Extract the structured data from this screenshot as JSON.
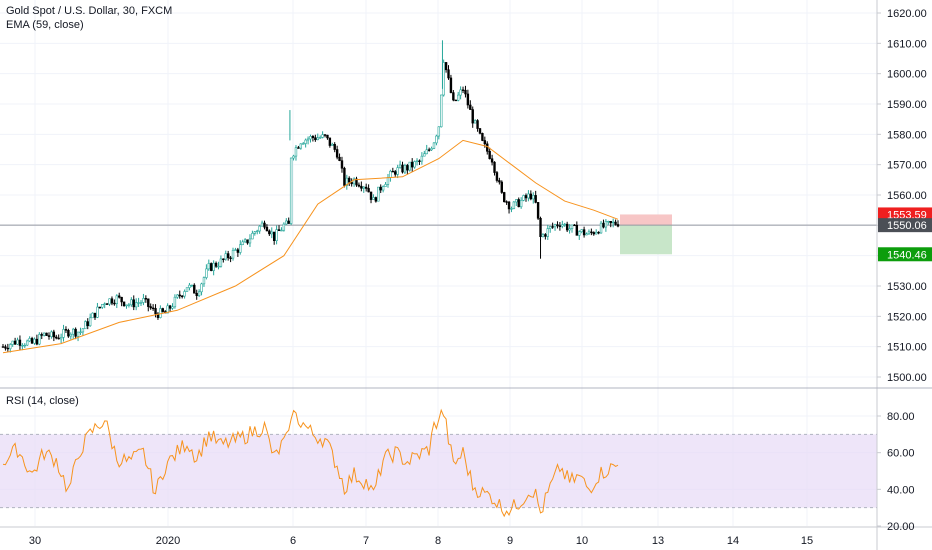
{
  "header": {
    "title": "Gold Spot / U.S. Dollar, 30, FXCM",
    "ema_label": "EMA (59, close)"
  },
  "rsi_panel": {
    "label": "RSI (14, close)"
  },
  "colors": {
    "up": "#26a69a",
    "down": "#000000",
    "ema": "#f7931e",
    "rsi": "#f7931e",
    "rsi_band": "#e8dcf7",
    "stop_zone": "#f7c6c6",
    "target_zone": "#c8e6c9",
    "stop_tag": "#ef1f1f",
    "target_tag": "#0c9d0c",
    "current_tag": "#4b4f56"
  },
  "chart_data": [
    {
      "type": "candlestick",
      "title": "Gold Spot / U.S. Dollar, 30, FXCM",
      "ylim": [
        1495,
        1625
      ],
      "y_ticks": [
        "1620.00",
        "1610.00",
        "1600.00",
        "1590.00",
        "1580.00",
        "1570.00",
        "1560.00",
        "1550.00",
        "1540.00",
        "1530.00",
        "1520.00",
        "1510.00",
        "1500.00"
      ],
      "x_ticks": [
        "30",
        "2020",
        "6",
        "7",
        "8",
        "9",
        "10",
        "13",
        "14",
        "15"
      ],
      "price_path": [
        [
          0,
          1510
        ],
        [
          6,
          1512
        ],
        [
          12,
          1511
        ],
        [
          17,
          1514
        ],
        [
          22,
          1513
        ],
        [
          27,
          1515
        ],
        [
          32,
          1515
        ],
        [
          37,
          1520
        ],
        [
          42,
          1525
        ],
        [
          47,
          1526
        ],
        [
          52,
          1524
        ],
        [
          58,
          1525
        ],
        [
          63,
          1521
        ],
        [
          67,
          1521
        ],
        [
          72,
          1526
        ],
        [
          76,
          1530
        ],
        [
          80,
          1528
        ],
        [
          85,
          1536
        ],
        [
          90,
          1538
        ],
        [
          95,
          1541
        ],
        [
          100,
          1544
        ],
        [
          104,
          1548
        ],
        [
          108,
          1551
        ],
        [
          112,
          1546
        ],
        [
          116,
          1550
        ],
        [
          118,
          1550
        ],
        [
          119,
          1573
        ],
        [
          123,
          1578
        ],
        [
          128,
          1579
        ],
        [
          133,
          1579
        ],
        [
          138,
          1574
        ],
        [
          141,
          1564
        ],
        [
          145,
          1565
        ],
        [
          150,
          1563
        ],
        [
          153,
          1558
        ],
        [
          157,
          1564
        ],
        [
          162,
          1568
        ],
        [
          167,
          1569
        ],
        [
          172,
          1571
        ],
        [
          176,
          1575
        ],
        [
          178,
          1578
        ],
        [
          180,
          1583
        ],
        [
          182,
          1605
        ],
        [
          186,
          1590
        ],
        [
          190,
          1595
        ],
        [
          194,
          1585
        ],
        [
          198,
          1577
        ],
        [
          202,
          1572
        ],
        [
          206,
          1560
        ],
        [
          210,
          1556
        ],
        [
          214,
          1558
        ],
        [
          218,
          1560
        ],
        [
          220,
          1557
        ],
        [
          222,
          1546
        ],
        [
          226,
          1549
        ],
        [
          230,
          1551
        ],
        [
          234,
          1549
        ],
        [
          238,
          1548
        ],
        [
          242,
          1547
        ],
        [
          246,
          1549
        ],
        [
          250,
          1550
        ],
        [
          254,
          1551
        ]
      ],
      "ema_path": [
        [
          0,
          1508
        ],
        [
          24,
          1511
        ],
        [
          48,
          1518
        ],
        [
          72,
          1522
        ],
        [
          96,
          1530
        ],
        [
          116,
          1540
        ],
        [
          130,
          1557
        ],
        [
          145,
          1565
        ],
        [
          165,
          1566
        ],
        [
          180,
          1572
        ],
        [
          190,
          1578
        ],
        [
          200,
          1576
        ],
        [
          210,
          1570
        ],
        [
          220,
          1564
        ],
        [
          232,
          1558
        ],
        [
          244,
          1555
        ],
        [
          254,
          1552
        ]
      ],
      "current_price": "1550.06",
      "stop_level": "1553.59",
      "target_level": "1540.46"
    },
    {
      "type": "line",
      "title": "RSI (14, close)",
      "ylim": [
        17,
        94
      ],
      "y_ticks": [
        "80.00",
        "60.00",
        "40.00",
        "20.00"
      ],
      "band": [
        30,
        70
      ],
      "series": [
        {
          "values": [
            [
              0,
              55
            ],
            [
              6,
              62
            ],
            [
              12,
              48
            ],
            [
              17,
              60
            ],
            [
              22,
              56
            ],
            [
              27,
              39
            ],
            [
              32,
              62
            ],
            [
              37,
              72
            ],
            [
              42,
              78
            ],
            [
              47,
              57
            ],
            [
              52,
              55
            ],
            [
              58,
              60
            ],
            [
              63,
              38
            ],
            [
              67,
              53
            ],
            [
              72,
              60
            ],
            [
              76,
              66
            ],
            [
              80,
              57
            ],
            [
              85,
              70
            ],
            [
              90,
              64
            ],
            [
              95,
              66
            ],
            [
              100,
              69
            ],
            [
              104,
              72
            ],
            [
              108,
              74
            ],
            [
              112,
              57
            ],
            [
              116,
              66
            ],
            [
              118,
              68
            ],
            [
              119,
              82
            ],
            [
              123,
              77
            ],
            [
              128,
              70
            ],
            [
              133,
              67
            ],
            [
              138,
              53
            ],
            [
              141,
              41
            ],
            [
              145,
              48
            ],
            [
              150,
              44
            ],
            [
              153,
              37
            ],
            [
              157,
              56
            ],
            [
              162,
              60
            ],
            [
              167,
              55
            ],
            [
              172,
              59
            ],
            [
              176,
              62
            ],
            [
              178,
              74
            ],
            [
              180,
              79
            ],
            [
              182,
              82
            ],
            [
              186,
              53
            ],
            [
              190,
              60
            ],
            [
              194,
              42
            ],
            [
              198,
              38
            ],
            [
              202,
              36
            ],
            [
              206,
              30
            ],
            [
              210,
              29
            ],
            [
              214,
              34
            ],
            [
              218,
              40
            ],
            [
              220,
              37
            ],
            [
              222,
              27
            ],
            [
              226,
              41
            ],
            [
              230,
              52
            ],
            [
              234,
              44
            ],
            [
              238,
              47
            ],
            [
              242,
              40
            ],
            [
              246,
              48
            ],
            [
              250,
              51
            ],
            [
              254,
              53
            ]
          ]
        }
      ]
    }
  ]
}
